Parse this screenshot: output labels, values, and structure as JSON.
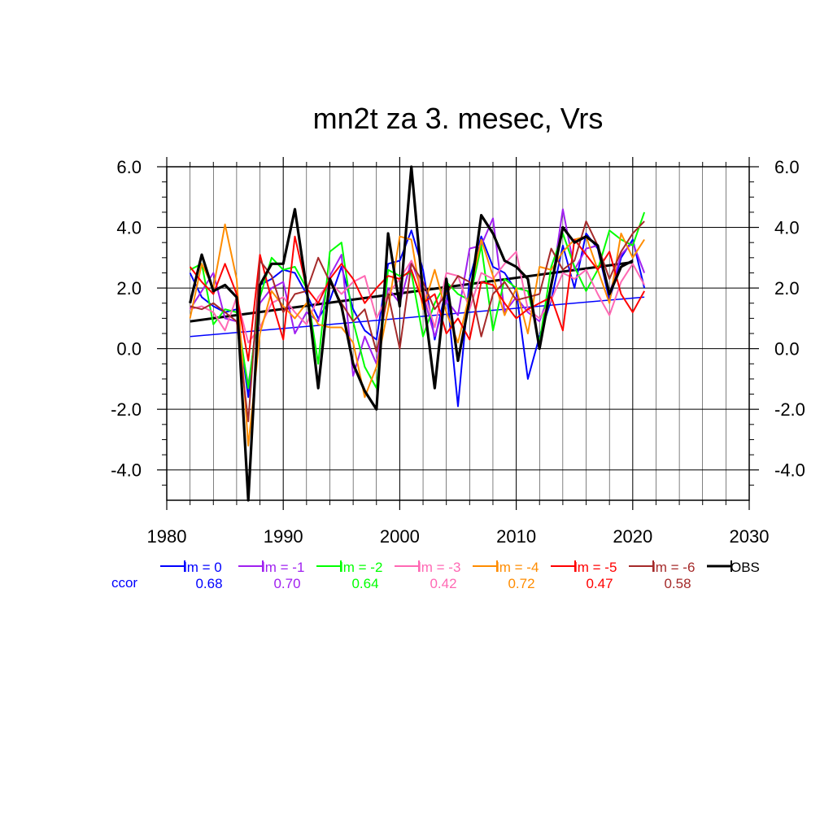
{
  "chart_data": {
    "type": "line",
    "title": "mn2t za 3. mesec, Vrs",
    "xlabel": "",
    "ylabel": "",
    "xlim": [
      1980,
      2030
    ],
    "ylim": [
      -5.0,
      6.0
    ],
    "x_ticks": [
      1980,
      1990,
      2000,
      2010,
      2020,
      2030
    ],
    "x_tick_labels": [
      "1980",
      "1990",
      "2000",
      "2010",
      "2020",
      "2030"
    ],
    "y_ticks": [
      -4.0,
      -2.0,
      0.0,
      2.0,
      4.0,
      6.0
    ],
    "y_tick_labels": [
      "-4.0",
      "-2.0",
      "0.0",
      "2.0",
      "4.0",
      "6.0"
    ],
    "grid": true,
    "legend_position": "bottom",
    "ccor_label": "ccor",
    "colors": {
      "lm0": "#0000ff",
      "lm1": "#a020f0",
      "lm2": "#00ff00",
      "lm3": "#ff69b4",
      "lm4": "#ff8c00",
      "lm5": "#ff0000",
      "lm6": "#a52a2a",
      "obs": "#000000"
    },
    "x": [
      1982,
      1983,
      1984,
      1985,
      1986,
      1987,
      1988,
      1989,
      1990,
      1991,
      1992,
      1993,
      1994,
      1995,
      1996,
      1997,
      1998,
      1999,
      2000,
      2001,
      2002,
      2003,
      2004,
      2005,
      2006,
      2007,
      2008,
      2009,
      2010,
      2011,
      2012,
      2013,
      2014,
      2015,
      2016,
      2017,
      2018,
      2019,
      2020,
      2021
    ],
    "series": [
      {
        "name": "lm = 0",
        "ccor": "0.68",
        "color_key": "lm0",
        "values": [
          2.5,
          1.7,
          1.4,
          1.2,
          1.3,
          -1.6,
          2.1,
          2.3,
          2.6,
          2.5,
          1.8,
          1.0,
          1.6,
          2.7,
          1.3,
          0.6,
          0.3,
          2.8,
          2.9,
          3.9,
          2.6,
          0.3,
          2.0,
          -1.9,
          2.3,
          3.7,
          2.7,
          2.5,
          1.9,
          -1.0,
          0.4,
          1.6,
          3.4,
          2.0,
          3.8,
          3.3,
          1.6,
          3.0,
          3.6,
          2.0
        ]
      },
      {
        "name": "lm = -1",
        "ccor": "0.70",
        "color_key": "lm1",
        "values": [
          1.3,
          1.9,
          2.5,
          1.0,
          0.9,
          -1.2,
          1.5,
          2.0,
          2.2,
          0.5,
          1.2,
          0.9,
          2.4,
          3.1,
          -0.9,
          0.4,
          -0.5,
          2.0,
          1.5,
          2.9,
          1.8,
          0.4,
          1.6,
          1.1,
          3.3,
          3.4,
          4.3,
          1.2,
          1.7,
          1.2,
          0.9,
          2.0,
          4.6,
          2.6,
          3.3,
          3.4,
          1.8,
          3.1,
          3.5,
          2.5
        ]
      },
      {
        "name": "lm = -2",
        "ccor": "0.64",
        "color_key": "lm2",
        "values": [
          2.6,
          2.8,
          0.8,
          1.3,
          1.2,
          -1.3,
          1.7,
          3.0,
          2.6,
          2.7,
          2.0,
          -0.5,
          3.2,
          3.5,
          0.9,
          -0.6,
          -1.3,
          2.6,
          2.4,
          2.5,
          0.4,
          1.5,
          2.2,
          1.8,
          1.6,
          3.4,
          0.6,
          2.3,
          2.0,
          1.9,
          0.2,
          2.7,
          3.8,
          2.7,
          1.9,
          2.6,
          3.9,
          3.6,
          3.4,
          4.5
        ]
      },
      {
        "name": "lm = -3",
        "ccor": "0.42",
        "color_key": "lm3",
        "values": [
          1.3,
          1.4,
          1.2,
          0.6,
          1.7,
          0.2,
          0.7,
          1.5,
          1.7,
          1.2,
          0.8,
          1.7,
          2.2,
          1.8,
          2.2,
          2.4,
          1.0,
          1.8,
          2.3,
          2.9,
          2.0,
          0.7,
          2.5,
          2.4,
          1.3,
          2.5,
          2.3,
          2.8,
          3.2,
          1.3,
          1.0,
          1.6,
          2.5,
          2.3,
          2.6,
          1.8,
          1.1,
          2.2,
          2.8,
          2.1
        ]
      },
      {
        "name": "lm = -4",
        "ccor": "0.72",
        "color_key": "lm4",
        "values": [
          1.0,
          2.8,
          2.0,
          4.1,
          2.3,
          -3.2,
          0.5,
          1.9,
          1.4,
          1.0,
          1.5,
          0.8,
          0.7,
          0.7,
          0.2,
          -1.6,
          -0.6,
          1.3,
          3.7,
          3.6,
          1.3,
          2.6,
          1.2,
          0.2,
          1.8,
          3.6,
          2.4,
          1.1,
          2.0,
          0.5,
          2.7,
          2.6,
          3.2,
          3.6,
          3.7,
          2.6,
          1.5,
          3.8,
          3.0,
          3.6
        ]
      },
      {
        "name": "lm = -5",
        "ccor": "0.47",
        "color_key": "lm5",
        "values": [
          2.7,
          2.2,
          1.8,
          2.8,
          1.8,
          -0.4,
          3.1,
          1.6,
          0.3,
          3.7,
          2.0,
          1.5,
          2.3,
          2.8,
          2.3,
          1.5,
          2.0,
          2.4,
          2.3,
          2.6,
          1.5,
          1.8,
          0.5,
          1.0,
          0.3,
          2.2,
          2.1,
          1.5,
          1.0,
          1.3,
          1.5,
          1.7,
          0.6,
          3.6,
          3.1,
          2.6,
          3.2,
          1.8,
          1.2,
          1.9
        ]
      },
      {
        "name": "lm = -6",
        "ccor": "0.58",
        "color_key": "lm6",
        "values": [
          1.4,
          1.3,
          1.5,
          1.2,
          0.9,
          -2.4,
          2.9,
          2.4,
          1.2,
          1.8,
          1.9,
          3.0,
          2.2,
          1.5,
          0.9,
          1.3,
          -0.1,
          1.8,
          0.0,
          2.8,
          2.2,
          1.3,
          1.8,
          2.4,
          2.2,
          0.4,
          1.8,
          2.2,
          1.6,
          1.7,
          1.8,
          3.3,
          2.6,
          2.9,
          4.2,
          3.4,
          2.3,
          3.2,
          3.8,
          4.2
        ]
      },
      {
        "name": "OBS",
        "ccor": "",
        "color_key": "obs",
        "values": [
          1.5,
          3.1,
          1.9,
          2.1,
          1.7,
          -5.0,
          2.1,
          2.8,
          2.8,
          4.6,
          2.0,
          -1.3,
          2.3,
          1.4,
          -0.5,
          -1.4,
          -2.0,
          3.8,
          1.4,
          6.0,
          1.8,
          -1.3,
          2.3,
          -0.4,
          1.6,
          4.4,
          3.8,
          2.9,
          2.7,
          2.3,
          0.0,
          2.1,
          4.0,
          3.5,
          3.7,
          3.4,
          1.8,
          2.7,
          2.9,
          null
        ]
      }
    ],
    "trend_lines": [
      {
        "name": "lm = 0 trend",
        "color_key": "lm0",
        "x": [
          1982,
          2021
        ],
        "values": [
          0.4,
          1.7
        ]
      },
      {
        "name": "OBS trend",
        "color_key": "obs",
        "x": [
          1982,
          2020
        ],
        "values": [
          0.9,
          2.85
        ]
      }
    ]
  }
}
